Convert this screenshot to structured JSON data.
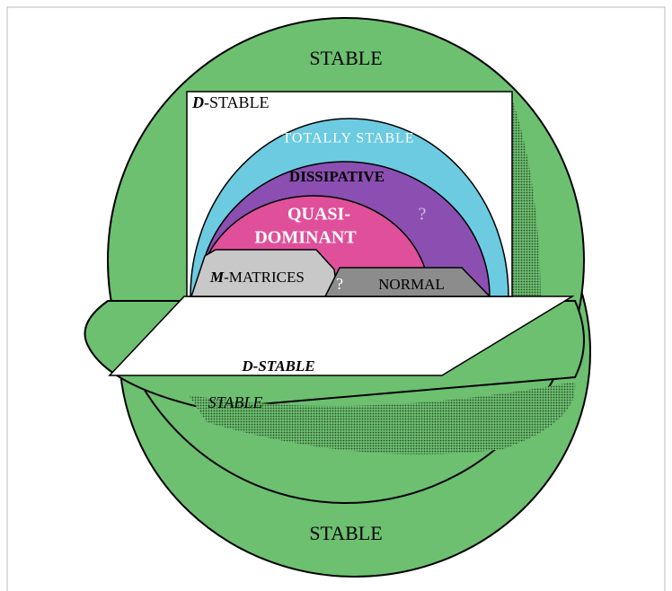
{
  "labels": {
    "stable_top": "STABLE",
    "d_stable_box": {
      "letter": "D",
      "rest": "-STABLE"
    },
    "totally_stable": "TOTALLY STABLE",
    "dissipative": "DISSIPATIVE",
    "quasi_dominant": [
      "QUASI-",
      "DOMINANT"
    ],
    "question_dissipative": "?",
    "m_matrices": {
      "letter": "M",
      "rest": "-MATRICES"
    },
    "question_normal": "?",
    "normal": "NORMAL",
    "d_stable_plane": "D-STABLE",
    "stable_plane": "STABLE",
    "stable_bottom": "STABLE"
  }
}
